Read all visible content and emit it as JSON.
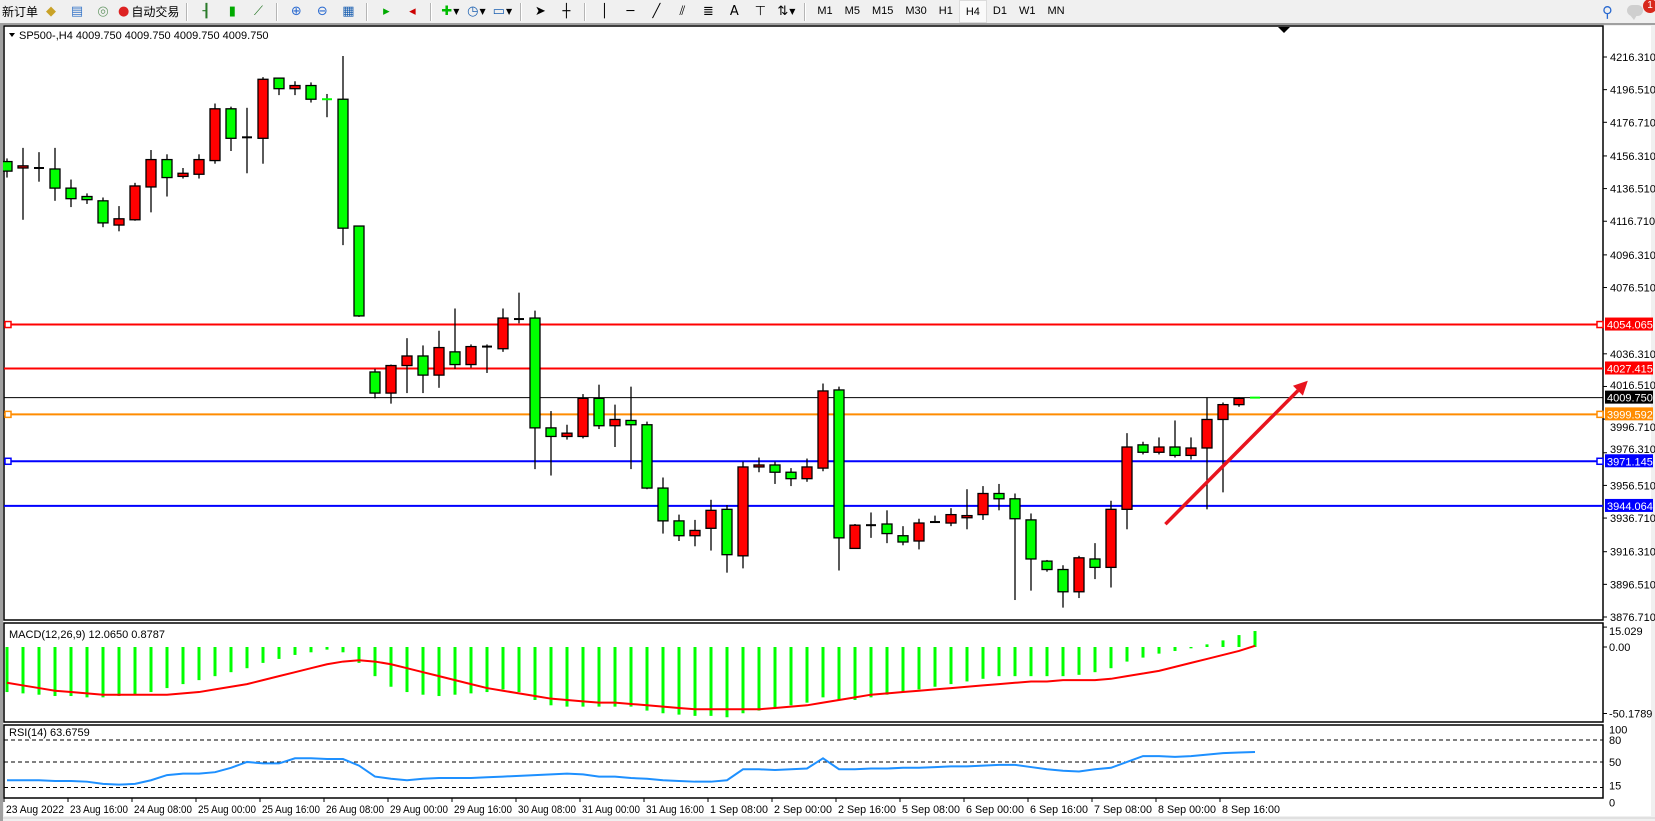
{
  "toolbar": {
    "new_order_label": "新订单",
    "auto_trading_label": "自动交易",
    "icons": [
      "new-order-icon",
      "market-watch-icon",
      "data-window-icon",
      "navigator-icon",
      "auto-trading-icon",
      "bar-chart-icon",
      "candlestick-icon",
      "line-chart-icon",
      "zoom-in-icon",
      "zoom-out-icon",
      "tile-windows-icon",
      "auto-scroll-icon",
      "chart-shift-icon",
      "indicators-icon",
      "periods-icon",
      "templates-icon",
      "cursor-icon",
      "crosshair-icon",
      "vertical-line-icon",
      "horizontal-line-icon",
      "trendline-icon",
      "equidistant-channel-icon",
      "fibonacci-icon",
      "text-icon",
      "text-label-icon",
      "arrows-icon"
    ],
    "text_tool_label": "A",
    "timeframes": [
      "M1",
      "M5",
      "M15",
      "M30",
      "H1",
      "H4",
      "D1",
      "W1",
      "MN"
    ],
    "active_timeframe": "H4",
    "notification_count": "1"
  },
  "chart_header": "SP500-,H4  4009.750 4009.750 4009.750 4009.750",
  "colors": {
    "bull": "#ff0000",
    "bear": "#00ff00",
    "macd_hist": "#00ff00",
    "macd_signal": "#ff0000",
    "rsi": "#1e90ff",
    "res1": "#ff0000",
    "res2": "#ff0000",
    "pivot": "#ff8c00",
    "sup1": "#0000ff",
    "sup2": "#0000ff",
    "arrow": "#e8141e"
  },
  "chart_data": {
    "type": "candlestick",
    "symbol": "SP500-",
    "timeframe": "H4",
    "ylim": [
      3876.71,
      4216.31
    ],
    "y_ticks": [
      "4216.310",
      "4196.510",
      "4176.710",
      "4156.310",
      "4136.510",
      "4116.710",
      "4096.310",
      "4076.510",
      "4036.310",
      "4016.510",
      "3996.710",
      "3976.310",
      "3956.510",
      "3936.710",
      "3916.310",
      "3896.510",
      "3876.710"
    ],
    "x_ticks": [
      {
        "bar": 0,
        "label": "23 Aug 2022"
      },
      {
        "bar": 4,
        "label": "23 Aug 16:00"
      },
      {
        "bar": 8,
        "label": "24 Aug 08:00"
      },
      {
        "bar": 12,
        "label": "25 Aug 00:00"
      },
      {
        "bar": 16,
        "label": "25 Aug 16:00"
      },
      {
        "bar": 20,
        "label": "26 Aug 08:00"
      },
      {
        "bar": 24,
        "label": "29 Aug 00:00"
      },
      {
        "bar": 28,
        "label": "29 Aug 16:00"
      },
      {
        "bar": 32,
        "label": "30 Aug 08:00"
      },
      {
        "bar": 36,
        "label": "31 Aug 00:00"
      },
      {
        "bar": 40,
        "label": "31 Aug 16:00"
      },
      {
        "bar": 44,
        "label": "1 Sep 08:00"
      },
      {
        "bar": 48,
        "label": "2 Sep 00:00"
      },
      {
        "bar": 52,
        "label": "2 Sep 16:00"
      },
      {
        "bar": 56,
        "label": "5 Sep 08:00"
      },
      {
        "bar": 60,
        "label": "6 Sep 00:00"
      },
      {
        "bar": 64,
        "label": "6 Sep 16:00"
      },
      {
        "bar": 68,
        "label": "7 Sep 08:00"
      },
      {
        "bar": 72,
        "label": "8 Sep 00:00"
      },
      {
        "bar": 76,
        "label": "8 Sep 16:00"
      }
    ],
    "ohlc": [
      [
        4152.9,
        4154.8,
        4143.2,
        4147.1
      ],
      [
        4149.0,
        4161.2,
        4117.6,
        4150.3
      ],
      [
        4149.0,
        4158.6,
        4140.7,
        4149.0
      ],
      [
        4148.4,
        4161.2,
        4129.1,
        4136.8
      ],
      [
        4136.8,
        4142.0,
        4125.3,
        4130.4
      ],
      [
        4131.7,
        4133.6,
        4127.2,
        4129.8
      ],
      [
        4129.1,
        4131.1,
        4113.1,
        4115.7
      ],
      [
        4114.4,
        4125.9,
        4110.6,
        4118.2
      ],
      [
        4117.6,
        4140.0,
        4117.0,
        4138.1
      ],
      [
        4137.5,
        4159.9,
        4122.1,
        4154.1
      ],
      [
        4154.1,
        4157.3,
        4131.7,
        4143.2
      ],
      [
        4143.9,
        4149.0,
        4142.6,
        4145.8
      ],
      [
        4145.2,
        4157.3,
        4142.6,
        4154.1
      ],
      [
        4153.5,
        4188.1,
        4151.6,
        4184.9
      ],
      [
        4184.9,
        4186.2,
        4159.3,
        4167.0
      ],
      [
        4167.6,
        4185.5,
        4145.8,
        4167.6
      ],
      [
        4167.0,
        4204.1,
        4151.6,
        4202.8
      ],
      [
        4203.5,
        4203.5,
        4193.2,
        4197.1
      ],
      [
        4197.1,
        4201.6,
        4193.2,
        4199.0
      ],
      [
        4199.0,
        4200.9,
        4188.7,
        4190.7
      ],
      [
        4190.7,
        4193.9,
        4179.8,
        4190.6
      ],
      [
        4190.7,
        4216.9,
        4102.2,
        4112.5
      ],
      [
        4113.8,
        4113.8,
        4058.7,
        4059.3
      ],
      [
        4025.3,
        4027.2,
        4009.3,
        4012.5
      ],
      [
        4012.5,
        4029.8,
        4006.1,
        4029.2
      ],
      [
        4029.2,
        4045.8,
        4012.5,
        4035.0
      ],
      [
        4035.0,
        4041.4,
        4012.5,
        4023.4
      ],
      [
        4023.4,
        4050.3,
        4015.7,
        4040.1
      ],
      [
        4037.5,
        4063.8,
        4027.2,
        4029.8
      ],
      [
        4029.8,
        4042.0,
        4027.9,
        4040.7
      ],
      [
        4040.7,
        4042.0,
        4024.7,
        4040.7
      ],
      [
        4039.4,
        4063.8,
        4037.5,
        4058.0
      ],
      [
        4057.4,
        4073.4,
        4054.8,
        4057.4
      ],
      [
        4058.0,
        4062.5,
        3966.4,
        3991.4
      ],
      [
        3991.4,
        4001.6,
        3962.5,
        3986.2
      ],
      [
        3986.2,
        3993.3,
        3984.3,
        3988.2
      ],
      [
        3986.2,
        4011.9,
        3985.0,
        4009.3
      ],
      [
        4009.3,
        4017.6,
        3990.7,
        3992.7
      ],
      [
        3992.7,
        4005.5,
        3979.8,
        3996.5
      ],
      [
        3995.9,
        4016.4,
        3966.4,
        3993.3
      ],
      [
        3993.3,
        3995.2,
        3954.2,
        3954.9
      ],
      [
        3954.9,
        3961.3,
        3927.3,
        3935.0
      ],
      [
        3935.0,
        3938.8,
        3922.8,
        3926.0
      ],
      [
        3926.0,
        3935.6,
        3919.6,
        3929.2
      ],
      [
        3930.5,
        3947.8,
        3917.0,
        3941.4
      ],
      [
        3942.0,
        3944.6,
        3903.6,
        3914.5
      ],
      [
        3913.8,
        3970.9,
        3906.2,
        3967.7
      ],
      [
        3967.7,
        3973.4,
        3964.5,
        3968.9
      ],
      [
        3968.9,
        3970.9,
        3957.4,
        3964.5
      ],
      [
        3964.5,
        3967.0,
        3956.1,
        3960.6
      ],
      [
        3960.6,
        3972.8,
        3958.7,
        3967.7
      ],
      [
        3967.0,
        4018.3,
        3965.1,
        4013.8
      ],
      [
        4014.4,
        4016.4,
        3904.9,
        3924.7
      ],
      [
        3918.3,
        3933.1,
        3918.3,
        3932.4
      ],
      [
        3932.4,
        3940.1,
        3924.7,
        3932.4
      ],
      [
        3933.1,
        3941.4,
        3921.5,
        3927.3
      ],
      [
        3926.0,
        3931.8,
        3920.2,
        3922.2
      ],
      [
        3922.8,
        3936.3,
        3917.7,
        3933.7
      ],
      [
        3934.3,
        3938.2,
        3934.3,
        3934.3
      ],
      [
        3933.7,
        3942.7,
        3931.8,
        3938.8
      ],
      [
        3936.9,
        3954.2,
        3929.9,
        3938.2
      ],
      [
        3938.8,
        3956.1,
        3935.6,
        3951.6
      ],
      [
        3951.6,
        3957.4,
        3941.4,
        3948.4
      ],
      [
        3948.4,
        3951.6,
        3887.0,
        3936.3
      ],
      [
        3935.6,
        3939.5,
        3892.7,
        3911.9
      ],
      [
        3910.6,
        3911.3,
        3904.2,
        3905.5
      ],
      [
        3905.5,
        3908.1,
        3882.4,
        3892.0
      ],
      [
        3892.0,
        3913.8,
        3888.2,
        3912.6
      ],
      [
        3911.9,
        3921.5,
        3899.7,
        3906.8
      ],
      [
        3906.8,
        3947.2,
        3894.6,
        3942.0
      ],
      [
        3942.0,
        3988.2,
        3929.9,
        3979.8
      ],
      [
        3981.1,
        3983.0,
        3975.3,
        3976.6
      ],
      [
        3976.6,
        3985.6,
        3975.3,
        3979.8
      ],
      [
        3979.8,
        3995.9,
        3973.4,
        3974.7
      ],
      [
        3974.7,
        3985.6,
        3972.2,
        3979.2
      ],
      [
        3979.2,
        4010.0,
        3942.0,
        3996.5
      ],
      [
        3996.5,
        4006.8,
        3952.3,
        4005.5
      ],
      [
        4005.5,
        4010.0,
        4004.2,
        4009.3
      ],
      [
        4009.75,
        4009.75,
        4009.75,
        4009.75
      ]
    ],
    "levels": [
      {
        "price": 4054.065,
        "label": "4054.065",
        "color": "#ff0000",
        "handles": true
      },
      {
        "price": 4027.415,
        "label": "4027.415",
        "color": "#ff0000",
        "handles": false
      },
      {
        "price": 4009.75,
        "label": "4009.750",
        "color": "#000000",
        "handles": false,
        "thin": true
      },
      {
        "price": 3999.592,
        "label": "3999.592",
        "color": "#ff8c00",
        "handles": true
      },
      {
        "price": 3971.145,
        "label": "3971.145",
        "color": "#0000ff",
        "handles": true
      },
      {
        "price": 3944.064,
        "label": "3944.064",
        "color": "#0000ff",
        "handles": false
      }
    ],
    "arrow": {
      "from": {
        "bar": 72.4,
        "price": 3933
      },
      "to": {
        "bar": 81.3,
        "price": 4020
      }
    },
    "macd": {
      "label": "MACD(12,26,9) 12.0650 0.8787",
      "ylim": [
        -50.1789,
        15.029
      ],
      "y_ticks": [
        "15.029",
        "0.00",
        "-50.1789"
      ],
      "histogram": [
        -34,
        -35,
        -36,
        -37,
        -37,
        -38,
        -38,
        -37,
        -36,
        -34,
        -31,
        -28,
        -25,
        -22,
        -19,
        -16,
        -12,
        -9,
        -6,
        -4,
        -2,
        -4,
        -12,
        -22,
        -30,
        -34,
        -36,
        -37,
        -36,
        -35,
        -34,
        -32,
        -34,
        -40,
        -44,
        -45,
        -45,
        -45,
        -45,
        -45,
        -48,
        -50,
        -51,
        -52,
        -52,
        -53,
        -50,
        -48,
        -46,
        -44,
        -42,
        -38,
        -40,
        -40,
        -38,
        -36,
        -34,
        -32,
        -30,
        -28,
        -26,
        -24,
        -22,
        -22,
        -22,
        -22,
        -22,
        -21,
        -19,
        -16,
        -11,
        -8,
        -5,
        -3,
        -1,
        2,
        5,
        9,
        12.065
      ],
      "signal": [
        -27,
        -29,
        -31,
        -33,
        -34,
        -35,
        -36,
        -36,
        -36,
        -36,
        -36,
        -35,
        -34,
        -32,
        -30,
        -28,
        -25,
        -22,
        -19,
        -16,
        -13,
        -11,
        -10,
        -11,
        -13,
        -16,
        -19,
        -22,
        -25,
        -28,
        -31,
        -33,
        -35,
        -37,
        -39,
        -40,
        -41,
        -42,
        -42,
        -43,
        -44,
        -45,
        -46,
        -47,
        -47,
        -47,
        -47,
        -47,
        -46,
        -45,
        -44,
        -42,
        -40,
        -38,
        -36,
        -35,
        -34,
        -33,
        -32,
        -31,
        -30,
        -29,
        -28,
        -27,
        -26,
        -26,
        -25,
        -25,
        -25,
        -24,
        -22,
        -20,
        -18,
        -15,
        -12,
        -9,
        -6,
        -3,
        0.8787
      ]
    },
    "rsi": {
      "label": "RSI(14) 63.6759",
      "ylim": [
        0,
        100
      ],
      "y_ticks": [
        "100",
        "80",
        "50",
        "15",
        "0"
      ],
      "levels": [
        80,
        50,
        15
      ],
      "values": [
        25,
        25,
        25,
        24,
        24,
        23,
        20,
        19,
        20,
        25,
        32,
        34,
        34,
        36,
        42,
        50,
        48,
        48,
        55,
        55,
        54,
        54,
        45,
        30,
        27,
        25,
        27,
        28,
        28,
        28,
        29,
        30,
        31,
        32,
        33,
        34,
        33,
        30,
        30,
        28,
        27,
        25,
        24,
        23,
        23,
        25,
        40,
        40,
        39,
        40,
        41,
        55,
        40,
        40,
        41,
        41,
        42,
        42,
        43,
        44,
        44,
        45,
        46,
        46,
        43,
        40,
        38,
        37,
        40,
        42,
        50,
        58,
        58,
        57,
        58,
        60,
        62,
        63,
        63.6759
      ]
    }
  }
}
